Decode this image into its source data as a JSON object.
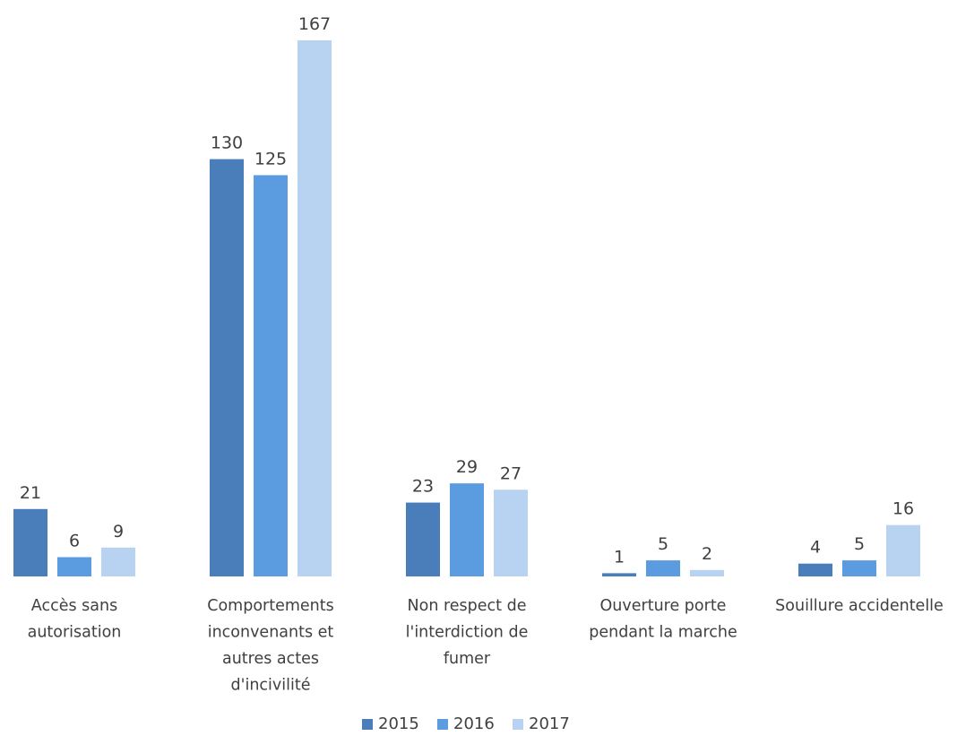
{
  "chart_data": {
    "type": "bar",
    "categories": [
      [
        "Accès sans",
        "autorisation"
      ],
      [
        "Comportements",
        "inconvenants et",
        "autres actes",
        "d'incivilité"
      ],
      [
        "Non respect de",
        "l'interdiction de",
        "fumer"
      ],
      [
        "Ouverture porte",
        "pendant la marche"
      ],
      [
        "Souillure accidentelle"
      ]
    ],
    "series": [
      {
        "name": "2015",
        "color": "#4a7ebb",
        "values": [
          21,
          130,
          23,
          1,
          4
        ]
      },
      {
        "name": "2016",
        "color": "#5b9be0",
        "values": [
          6,
          125,
          29,
          5,
          5
        ]
      },
      {
        "name": "2017",
        "color": "#b8d3f2",
        "values": [
          9,
          167,
          27,
          2,
          16
        ]
      }
    ],
    "ylim": [
      0,
      167
    ],
    "grid": false,
    "legend": "bottom-center"
  }
}
